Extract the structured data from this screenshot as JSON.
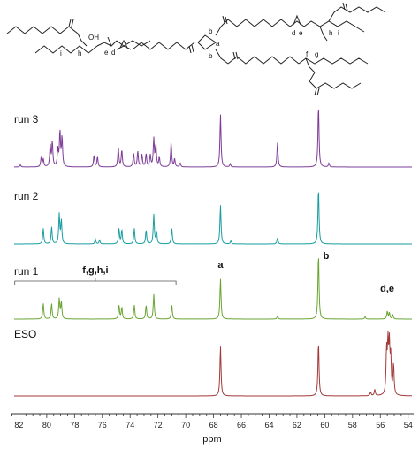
{
  "chart_data": {
    "type": "line",
    "title": "",
    "xlabel": "ppm",
    "ylabel": "",
    "xlim": [
      82.6,
      53.6
    ],
    "x_reversed": true,
    "x_ticks": [
      82,
      80,
      78,
      76,
      74,
      72,
      70,
      68,
      66,
      64,
      62,
      60,
      58,
      56,
      54
    ],
    "grid": false,
    "structure_letters": [
      "a",
      "b",
      "b",
      "d",
      "e",
      "d",
      "e",
      "f",
      "g",
      "h",
      "i",
      "h",
      "i"
    ],
    "series": [
      {
        "name": "run 3",
        "color": "#7d3c98",
        "peaks": [
          {
            "ppm": 81.9,
            "h": 0.03
          },
          {
            "ppm": 80.4,
            "h": 0.12
          },
          {
            "ppm": 80.25,
            "h": 0.1
          },
          {
            "ppm": 79.75,
            "h": 0.28
          },
          {
            "ppm": 79.6,
            "h": 0.32
          },
          {
            "ppm": 79.2,
            "h": 0.22
          },
          {
            "ppm": 79.05,
            "h": 0.45
          },
          {
            "ppm": 78.9,
            "h": 0.38
          },
          {
            "ppm": 76.6,
            "h": 0.15
          },
          {
            "ppm": 76.35,
            "h": 0.13
          },
          {
            "ppm": 74.85,
            "h": 0.25
          },
          {
            "ppm": 74.6,
            "h": 0.22
          },
          {
            "ppm": 73.75,
            "h": 0.18
          },
          {
            "ppm": 73.45,
            "h": 0.2
          },
          {
            "ppm": 73.15,
            "h": 0.16
          },
          {
            "ppm": 72.85,
            "h": 0.17
          },
          {
            "ppm": 72.55,
            "h": 0.15
          },
          {
            "ppm": 72.3,
            "h": 0.36
          },
          {
            "ppm": 72.15,
            "h": 0.28
          },
          {
            "ppm": 71.9,
            "h": 0.12
          },
          {
            "ppm": 71.05,
            "h": 0.32
          },
          {
            "ppm": 70.8,
            "h": 0.1
          },
          {
            "ppm": 70.4,
            "h": 0.05
          },
          {
            "ppm": 67.5,
            "h": 0.68
          },
          {
            "ppm": 66.8,
            "h": 0.04
          },
          {
            "ppm": 63.4,
            "h": 0.32
          },
          {
            "ppm": 60.45,
            "h": 0.8
          },
          {
            "ppm": 59.7,
            "h": 0.05
          }
        ]
      },
      {
        "name": "run 2",
        "color": "#1a9da0",
        "peaks": [
          {
            "ppm": 80.25,
            "h": 0.2
          },
          {
            "ppm": 79.65,
            "h": 0.22
          },
          {
            "ppm": 79.1,
            "h": 0.38
          },
          {
            "ppm": 78.95,
            "h": 0.3
          },
          {
            "ppm": 76.5,
            "h": 0.06
          },
          {
            "ppm": 76.2,
            "h": 0.05
          },
          {
            "ppm": 74.8,
            "h": 0.2
          },
          {
            "ppm": 74.6,
            "h": 0.18
          },
          {
            "ppm": 73.7,
            "h": 0.2
          },
          {
            "ppm": 72.85,
            "h": 0.18
          },
          {
            "ppm": 72.3,
            "h": 0.38
          },
          {
            "ppm": 72.1,
            "h": 0.15
          },
          {
            "ppm": 71.0,
            "h": 0.2
          },
          {
            "ppm": 67.5,
            "h": 0.5
          },
          {
            "ppm": 66.75,
            "h": 0.04
          },
          {
            "ppm": 63.4,
            "h": 0.08
          },
          {
            "ppm": 60.45,
            "h": 0.72
          }
        ]
      },
      {
        "name": "run 1",
        "color": "#6aa533",
        "peaks": [
          {
            "ppm": 80.25,
            "h": 0.2
          },
          {
            "ppm": 79.65,
            "h": 0.2
          },
          {
            "ppm": 79.1,
            "h": 0.26
          },
          {
            "ppm": 78.95,
            "h": 0.22
          },
          {
            "ppm": 74.8,
            "h": 0.18
          },
          {
            "ppm": 74.6,
            "h": 0.15
          },
          {
            "ppm": 73.7,
            "h": 0.18
          },
          {
            "ppm": 72.85,
            "h": 0.18
          },
          {
            "ppm": 72.3,
            "h": 0.32
          },
          {
            "ppm": 71.0,
            "h": 0.18
          },
          {
            "ppm": 67.5,
            "h": 0.52
          },
          {
            "ppm": 63.4,
            "h": 0.04
          },
          {
            "ppm": 60.45,
            "h": 0.85
          },
          {
            "ppm": 57.1,
            "h": 0.03
          },
          {
            "ppm": 55.5,
            "h": 0.1
          },
          {
            "ppm": 55.35,
            "h": 0.08
          },
          {
            "ppm": 55.1,
            "h": 0.05
          }
        ]
      },
      {
        "name": "ESO",
        "color": "#a23a3a",
        "peaks": [
          {
            "ppm": 67.5,
            "h": 0.64
          },
          {
            "ppm": 60.45,
            "h": 0.7
          },
          {
            "ppm": 56.7,
            "h": 0.05
          },
          {
            "ppm": 56.4,
            "h": 0.08
          },
          {
            "ppm": 55.55,
            "h": 0.55
          },
          {
            "ppm": 55.45,
            "h": 0.62
          },
          {
            "ppm": 55.35,
            "h": 0.6
          },
          {
            "ppm": 55.25,
            "h": 0.45
          },
          {
            "ppm": 55.05,
            "h": 0.4
          }
        ]
      }
    ],
    "annotations": [
      {
        "text": "f,g,h,i",
        "range_ppm": [
          82.3,
          70.7
        ]
      },
      {
        "text": "a",
        "ppm": 67.5
      },
      {
        "text": "b",
        "ppm": 59.9
      },
      {
        "text": "d,e",
        "ppm": 55.5
      }
    ]
  }
}
